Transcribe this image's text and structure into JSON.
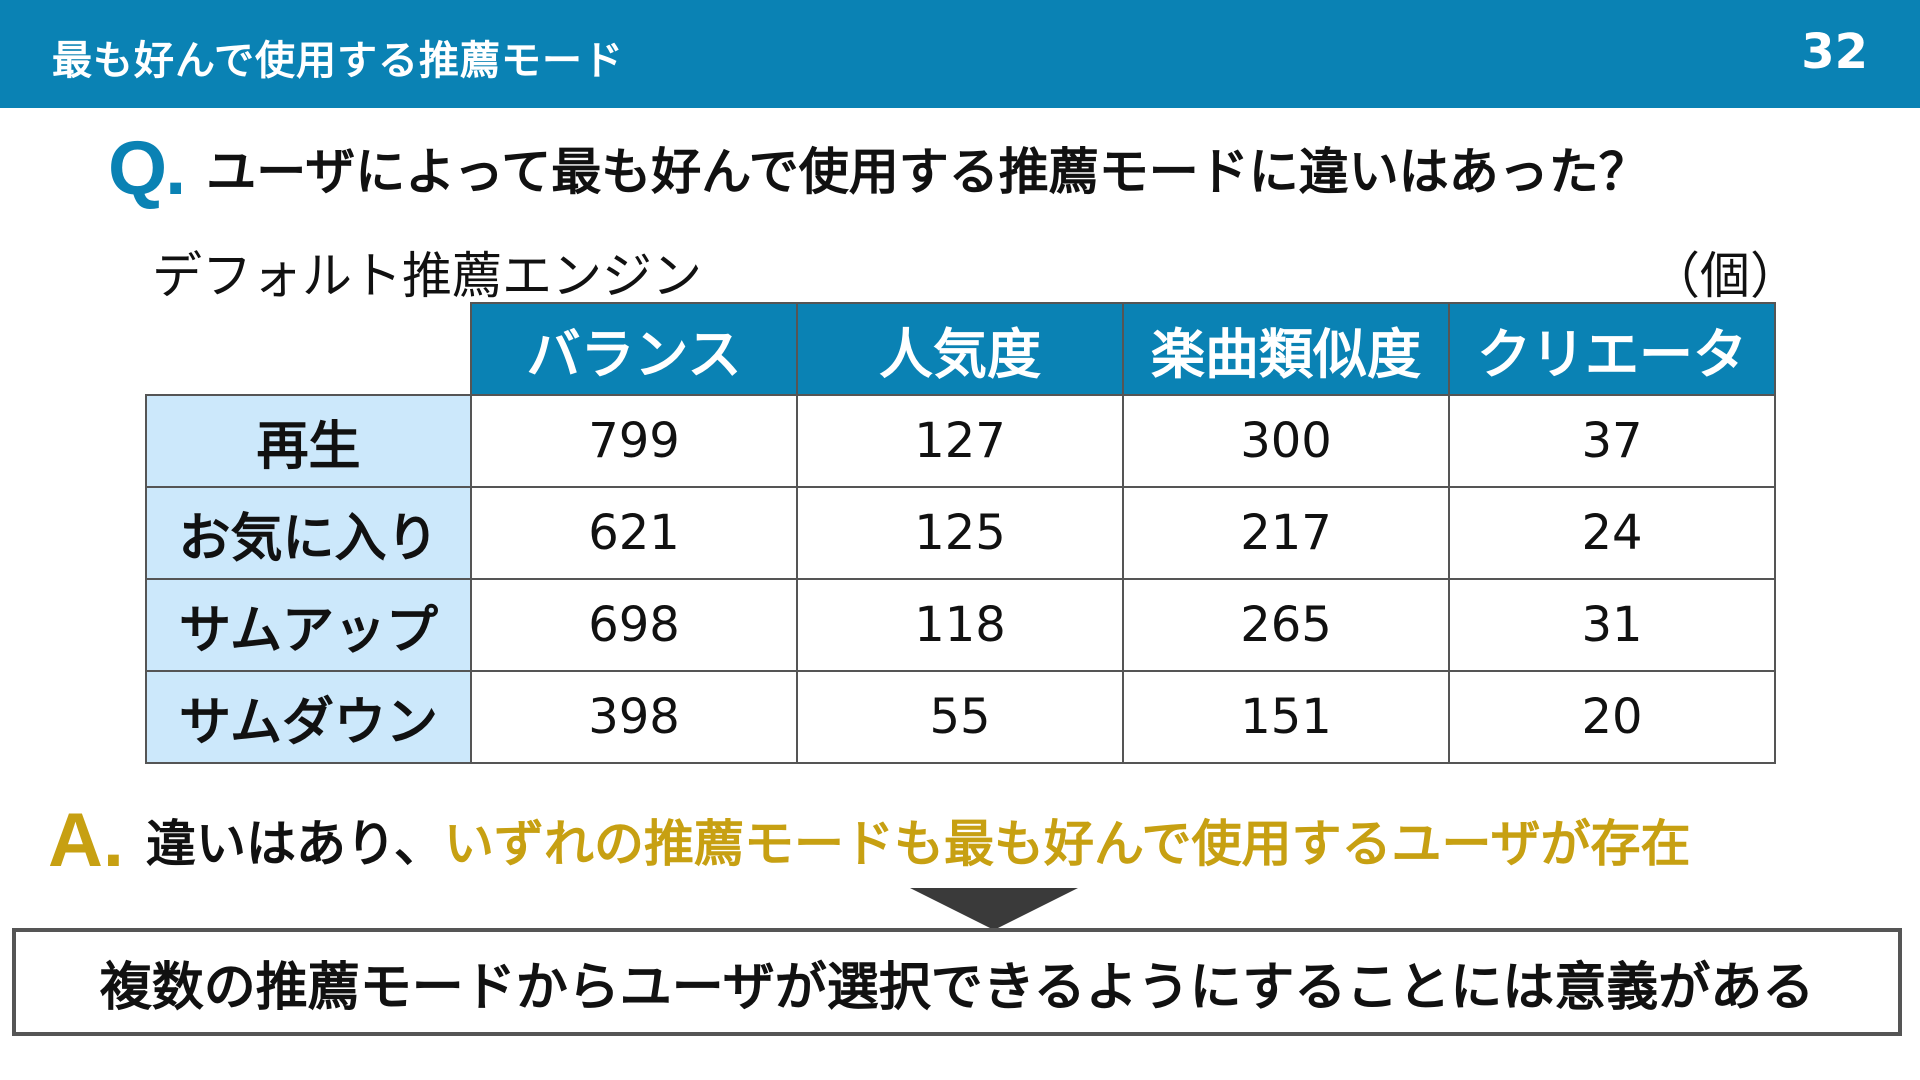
{
  "header": {
    "title": "最も好んで使用する推薦モード",
    "page_number": "32"
  },
  "question": {
    "mark": "Q.",
    "text": "ユーザによって最も好んで使用する推薦モードに違いはあった？"
  },
  "table_caption": {
    "left": "デフォルト推薦エンジン",
    "right": "（個）"
  },
  "table": {
    "columns": [
      "バランス",
      "人気度",
      "楽曲類似度",
      "クリエータ"
    ],
    "rows": [
      {
        "label": "再生",
        "values": [
          "799",
          "127",
          "300",
          "37"
        ]
      },
      {
        "label": "お気に入り",
        "values": [
          "621",
          "125",
          "217",
          "24"
        ]
      },
      {
        "label": "サムアップ",
        "values": [
          "698",
          "118",
          "265",
          "31"
        ]
      },
      {
        "label": "サムダウン",
        "values": [
          "398",
          "55",
          "151",
          "20"
        ]
      }
    ]
  },
  "answer": {
    "mark": "A.",
    "text_plain": "違いはあり、",
    "text_highlight": "いずれの推薦モードも最も好んで使用するユーザが存在"
  },
  "conclusion": "複数の推薦モードからユーザが選択できるようにすることには意義がある",
  "colors": {
    "header_blue": "#0a82b4",
    "row_header_light_blue": "#cce8fb",
    "answer_gold": "#c7a012"
  }
}
